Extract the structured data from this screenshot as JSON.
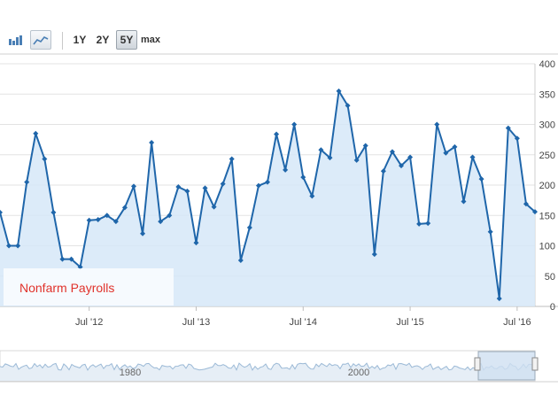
{
  "toolbar": {
    "icons": [
      {
        "name": "bar-chart-icon",
        "active": false
      },
      {
        "name": "line-chart-icon",
        "active": true
      }
    ],
    "ranges": [
      {
        "label": "1Y",
        "active": false
      },
      {
        "label": "2Y",
        "active": false
      },
      {
        "label": "5Y",
        "active": true
      },
      {
        "label": "max",
        "active": false
      }
    ]
  },
  "colors": {
    "line": "#1f66aa",
    "fill": "#d6e8f8",
    "grid": "#e3e3e3",
    "label": "#e0322b"
  },
  "chart_label": "Nonfarm Payrolls",
  "chart_data": {
    "type": "area",
    "title": "",
    "xlabel": "",
    "ylabel": "",
    "grid": true,
    "y_axis_position": "right",
    "ylim": [
      0,
      400
    ],
    "yticks": [
      0,
      50,
      100,
      150,
      200,
      250,
      300,
      350,
      400
    ],
    "x_range": [
      "2011-09",
      "2016-09"
    ],
    "x_ticks": [
      {
        "label": "Jul '12",
        "date": "2012-07"
      },
      {
        "label": "Jul '13",
        "date": "2013-07"
      },
      {
        "label": "Jul '14",
        "date": "2014-07"
      },
      {
        "label": "Jul '15",
        "date": "2015-07"
      },
      {
        "label": "Jul '16",
        "date": "2016-07"
      }
    ],
    "series": [
      {
        "x": [
          "2011-09",
          "2011-10",
          "2011-11",
          "2011-12",
          "2012-01",
          "2012-02",
          "2012-03",
          "2012-04",
          "2012-05",
          "2012-06",
          "2012-07",
          "2012-08",
          "2012-09",
          "2012-10",
          "2012-11",
          "2012-12",
          "2013-01",
          "2013-02",
          "2013-03",
          "2013-04",
          "2013-05",
          "2013-06",
          "2013-07",
          "2013-08",
          "2013-09",
          "2013-10",
          "2013-11",
          "2013-12",
          "2014-01",
          "2014-02",
          "2014-03",
          "2014-04",
          "2014-05",
          "2014-06",
          "2014-07",
          "2014-08",
          "2014-09",
          "2014-10",
          "2014-11",
          "2014-12",
          "2015-01",
          "2015-02",
          "2015-03",
          "2015-04",
          "2015-05",
          "2015-06",
          "2015-07",
          "2015-08",
          "2015-09",
          "2015-10",
          "2015-11",
          "2015-12",
          "2016-01",
          "2016-02",
          "2016-03",
          "2016-04",
          "2016-05",
          "2016-06",
          "2016-07",
          "2016-08",
          "2016-09"
        ],
        "values": [
          155,
          100,
          100,
          205,
          285,
          243,
          155,
          78,
          78,
          65,
          142,
          143,
          150,
          140,
          163,
          198,
          120,
          270,
          140,
          150,
          197,
          190,
          105,
          195,
          164,
          202,
          243,
          76,
          130,
          199,
          205,
          284,
          225,
          300,
          213,
          182,
          258,
          245,
          355,
          331,
          241,
          265,
          86,
          223,
          255,
          232,
          246,
          136,
          137,
          300,
          253,
          263,
          173,
          246,
          210,
          123,
          13,
          294,
          277,
          169,
          156
        ]
      }
    ]
  },
  "navigator": {
    "labels": [
      "1980",
      "2000"
    ]
  }
}
